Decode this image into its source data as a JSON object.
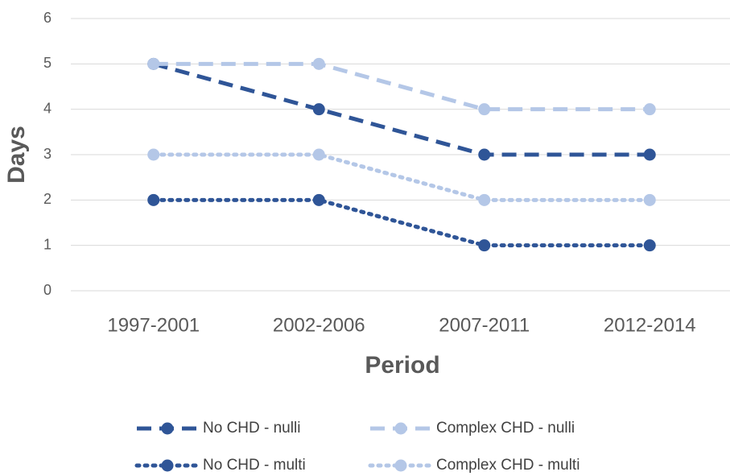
{
  "chart_data": {
    "type": "line",
    "x_label": "Period",
    "y_label": "Days",
    "categories": [
      "1997-2001",
      "2002-2006",
      "2007-2011",
      "2012-2014"
    ],
    "series": [
      {
        "name": "No CHD - nulli",
        "color": "#2f5597",
        "dash": "dashed",
        "values": [
          5,
          4,
          3,
          3
        ]
      },
      {
        "name": "Complex CHD - nulli",
        "color": "#b4c7e7",
        "dash": "dashed",
        "values": [
          5,
          5,
          4,
          4
        ]
      },
      {
        "name": "No CHD - multi",
        "color": "#2f5597",
        "dash": "dotted",
        "values": [
          2,
          2,
          1,
          1
        ]
      },
      {
        "name": "Complex CHD - multi",
        "color": "#b4c7e7",
        "dash": "dotted",
        "values": [
          3,
          3,
          2,
          2
        ]
      }
    ],
    "ylim": [
      0,
      6
    ],
    "yticks": [
      0,
      1,
      2,
      3,
      4,
      5,
      6
    ],
    "grid": true,
    "legend": "bottom"
  }
}
